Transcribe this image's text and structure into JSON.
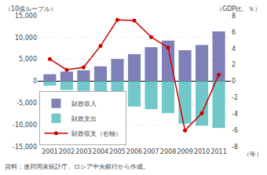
{
  "chart_data": {
    "type": "bar",
    "ylabel": "（10億ルーブル）",
    "y2label": "（GDP比、％）",
    "xlabel": "（年）",
    "source": "資料：連邦国家統計庁、ロシア中央銀行から作成。",
    "categories": [
      "2001",
      "2002",
      "2003",
      "2004",
      "2005",
      "2006",
      "2007",
      "2008",
      "2009",
      "2010",
      "2011"
    ],
    "series": [
      {
        "name": "財政収入",
        "type": "bar",
        "color": "#8080b8",
        "values": [
          1600,
          2200,
          2500,
          3400,
          5100,
          6200,
          7800,
          9300,
          7100,
          8300,
          11400
        ]
      },
      {
        "name": "財政支出",
        "type": "bar",
        "color": "#70c8c8",
        "values": [
          -1000,
          -2000,
          -2200,
          -2700,
          -3700,
          -5800,
          -6400,
          -7300,
          -9700,
          -10200,
          -10700
        ]
      },
      {
        "name": "財政収支（右軸）",
        "type": "line",
        "axis": "y2",
        "color": "#cc0000",
        "marker": "circle",
        "line_style": "solid",
        "values": [
          2.7,
          1.4,
          1.7,
          4.3,
          7.5,
          7.4,
          5.4,
          4.1,
          -6.0,
          -3.9,
          0.8
        ]
      }
    ],
    "ylim": [
      -15000,
      15000
    ],
    "yticks": [
      {
        "value": -15000,
        "label": "-15,000"
      },
      {
        "value": -10000,
        "label": "-10,000"
      },
      {
        "value": -5000,
        "label": "-5,000"
      },
      0,
      {
        "value": 5000,
        "label": "5,000"
      },
      {
        "value": 10000,
        "label": "10,000"
      },
      {
        "value": 15000,
        "label": "15,000"
      }
    ],
    "y2lim": [
      -8,
      8
    ],
    "y2ticks": [
      -8,
      -6,
      -4,
      -2,
      0,
      2,
      4,
      6,
      8
    ],
    "grid": true,
    "legend": "lower left"
  }
}
